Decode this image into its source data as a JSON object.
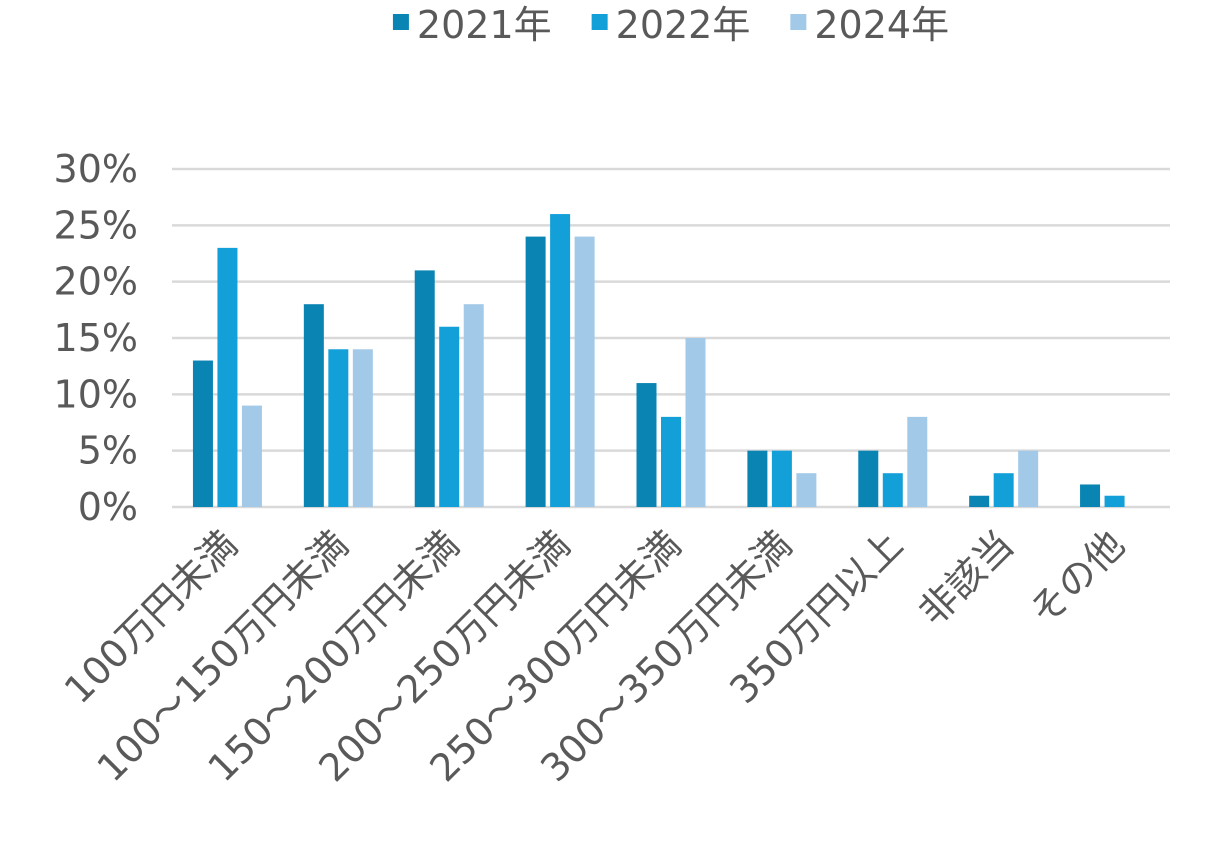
{
  "chart_data": {
    "type": "bar",
    "title": "",
    "xlabel": "",
    "ylabel": "",
    "categories": [
      "100万円未満",
      "100～150万円未満",
      "150～200万円未満",
      "200～250万円未満",
      "250～300万円未満",
      "300～350万円未満",
      "350万円以上",
      "非該当",
      "その他"
    ],
    "series": [
      {
        "name": "2021年",
        "color": "#0a84b3",
        "values": [
          13,
          18,
          21,
          24,
          11,
          5,
          5,
          1,
          2
        ]
      },
      {
        "name": "2022年",
        "color": "#139fd8",
        "values": [
          23,
          14,
          16,
          26,
          8,
          5,
          3,
          3,
          1
        ]
      },
      {
        "name": "2024年",
        "color": "#a3c9e8",
        "values": [
          9,
          14,
          18,
          24,
          15,
          3,
          8,
          5,
          0
        ]
      }
    ],
    "ylim": [
      0,
      30
    ],
    "yticks": [
      "0%",
      "5%",
      "10%",
      "15%",
      "20%",
      "25%",
      "30%"
    ],
    "grid": true,
    "legend_position": "top"
  }
}
